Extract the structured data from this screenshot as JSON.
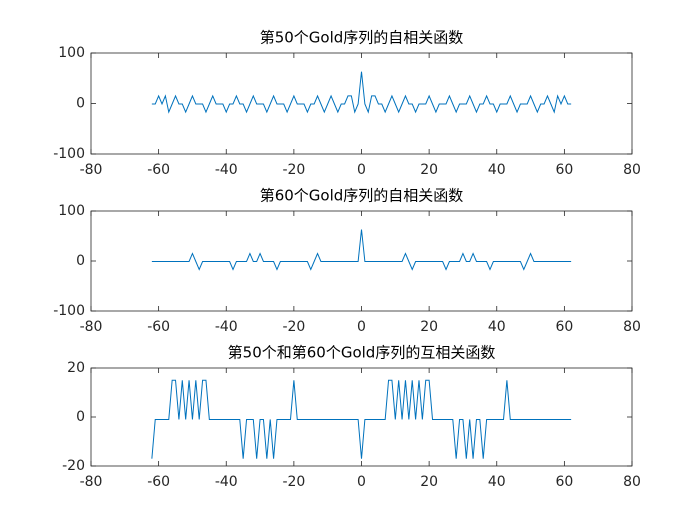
{
  "chart_data": [
    {
      "type": "line",
      "title": "第50个Gold序列的自相关函数",
      "x": [
        -62,
        -61,
        -60,
        -59,
        -58,
        -57,
        -56,
        -55,
        -54,
        -53,
        -52,
        -51,
        -50,
        -49,
        -48,
        -47,
        -46,
        -45,
        -44,
        -43,
        -42,
        -41,
        -40,
        -39,
        -38,
        -37,
        -36,
        -35,
        -34,
        -33,
        -32,
        -31,
        -30,
        -29,
        -28,
        -27,
        -26,
        -25,
        -24,
        -23,
        -22,
        -21,
        -20,
        -19,
        -18,
        -17,
        -16,
        -15,
        -14,
        -13,
        -12,
        -11,
        -10,
        -9,
        -8,
        -7,
        -6,
        -5,
        -4,
        -3,
        -2,
        -1,
        0,
        1,
        2,
        3,
        4,
        5,
        6,
        7,
        8,
        9,
        10,
        11,
        12,
        13,
        14,
        15,
        16,
        17,
        18,
        19,
        20,
        21,
        22,
        23,
        24,
        25,
        26,
        27,
        28,
        29,
        30,
        31,
        32,
        33,
        34,
        35,
        36,
        37,
        38,
        39,
        40,
        41,
        42,
        43,
        44,
        45,
        46,
        47,
        48,
        49,
        50,
        51,
        52,
        53,
        54,
        55,
        56,
        57,
        58,
        59,
        60,
        61,
        62
      ],
      "series": [
        {
          "color": "#0072bd",
          "values": [
            -1,
            -1,
            15,
            -1,
            15,
            -17,
            -1,
            15,
            -1,
            -1,
            -17,
            -1,
            15,
            -1,
            -1,
            -1,
            -17,
            -1,
            15,
            -1,
            -1,
            -1,
            -17,
            -1,
            -1,
            15,
            -1,
            -1,
            -17,
            -1,
            15,
            -1,
            -1,
            -1,
            -17,
            -1,
            15,
            -1,
            -1,
            -1,
            -17,
            -1,
            15,
            -1,
            -1,
            -1,
            -17,
            -1,
            -1,
            15,
            -1,
            -17,
            -1,
            15,
            -1,
            -17,
            -1,
            -1,
            15,
            15,
            -17,
            -1,
            63,
            -1,
            -17,
            15,
            15,
            -1,
            -1,
            -17,
            -1,
            15,
            -1,
            -17,
            -1,
            15,
            -1,
            -1,
            -17,
            -1,
            -1,
            -1,
            15,
            -1,
            -17,
            -1,
            -1,
            -1,
            15,
            -1,
            -17,
            -1,
            -1,
            -1,
            15,
            -1,
            -17,
            -1,
            -1,
            15,
            -1,
            -1,
            -17,
            -1,
            -1,
            -1,
            15,
            -1,
            -17,
            -1,
            -1,
            -1,
            15,
            -1,
            -17,
            -1,
            -1,
            15,
            -1,
            -17,
            15,
            -1,
            15,
            -1,
            -1
          ]
        }
      ],
      "xlim": [
        -80,
        80
      ],
      "xticks": [
        -80,
        -60,
        -40,
        -20,
        0,
        20,
        40,
        60,
        80
      ],
      "ylim": [
        -100,
        100
      ],
      "yticks": [
        -100,
        0,
        100
      ]
    },
    {
      "type": "line",
      "title": "第60个Gold序列的自相关函数",
      "x": [
        -62,
        -61,
        -60,
        -59,
        -58,
        -57,
        -56,
        -55,
        -54,
        -53,
        -52,
        -51,
        -50,
        -49,
        -48,
        -47,
        -46,
        -45,
        -44,
        -43,
        -42,
        -41,
        -40,
        -39,
        -38,
        -37,
        -36,
        -35,
        -34,
        -33,
        -32,
        -31,
        -30,
        -29,
        -28,
        -27,
        -26,
        -25,
        -24,
        -23,
        -22,
        -21,
        -20,
        -19,
        -18,
        -17,
        -16,
        -15,
        -14,
        -13,
        -12,
        -11,
        -10,
        -9,
        -8,
        -7,
        -6,
        -5,
        -4,
        -3,
        -2,
        -1,
        0,
        1,
        2,
        3,
        4,
        5,
        6,
        7,
        8,
        9,
        10,
        11,
        12,
        13,
        14,
        15,
        16,
        17,
        18,
        19,
        20,
        21,
        22,
        23,
        24,
        25,
        26,
        27,
        28,
        29,
        30,
        31,
        32,
        33,
        34,
        35,
        36,
        37,
        38,
        39,
        40,
        41,
        42,
        43,
        44,
        45,
        46,
        47,
        48,
        49,
        50,
        51,
        52,
        53,
        54,
        55,
        56,
        57,
        58,
        59,
        60,
        61,
        62
      ],
      "series": [
        {
          "color": "#0072bd",
          "values": [
            -1,
            -1,
            -1,
            -1,
            -1,
            -1,
            -1,
            -1,
            -1,
            -1,
            -1,
            -1,
            15,
            -1,
            -17,
            -1,
            -1,
            -1,
            -1,
            -1,
            -1,
            -1,
            -1,
            -1,
            -17,
            -1,
            -1,
            -1,
            -1,
            15,
            -1,
            -1,
            15,
            -1,
            -1,
            -1,
            -1,
            -17,
            -1,
            -1,
            -1,
            -1,
            -1,
            -1,
            -1,
            -1,
            -1,
            -17,
            -1,
            15,
            -1,
            -1,
            -1,
            -1,
            -1,
            -1,
            -1,
            -1,
            -1,
            -1,
            -1,
            -1,
            63,
            -1,
            -1,
            -1,
            -1,
            -1,
            -1,
            -1,
            -1,
            -1,
            -1,
            -1,
            -1,
            15,
            -1,
            -17,
            -1,
            -1,
            -1,
            -1,
            -1,
            -1,
            -1,
            -1,
            -1,
            -17,
            -1,
            -1,
            -1,
            -1,
            15,
            -1,
            -1,
            15,
            -1,
            -1,
            -1,
            -1,
            -17,
            -1,
            -1,
            -1,
            -1,
            -1,
            -1,
            -1,
            -1,
            -1,
            -17,
            -1,
            15,
            -1,
            -1,
            -1,
            -1,
            -1,
            -1,
            -1,
            -1,
            -1,
            -1,
            -1,
            -1
          ]
        }
      ],
      "xlim": [
        -80,
        80
      ],
      "xticks": [
        -80,
        -60,
        -40,
        -20,
        0,
        20,
        40,
        60,
        80
      ],
      "ylim": [
        -100,
        100
      ],
      "yticks": [
        -100,
        0,
        100
      ]
    },
    {
      "type": "line",
      "title": "第50个和第60个Gold序列的互相关函数",
      "x": [
        -62,
        -61,
        -60,
        -59,
        -58,
        -57,
        -56,
        -55,
        -54,
        -53,
        -52,
        -51,
        -50,
        -49,
        -48,
        -47,
        -46,
        -45,
        -44,
        -43,
        -42,
        -41,
        -40,
        -39,
        -38,
        -37,
        -36,
        -35,
        -34,
        -33,
        -32,
        -31,
        -30,
        -29,
        -28,
        -27,
        -26,
        -25,
        -24,
        -23,
        -22,
        -21,
        -20,
        -19,
        -18,
        -17,
        -16,
        -15,
        -14,
        -13,
        -12,
        -11,
        -10,
        -9,
        -8,
        -7,
        -6,
        -5,
        -4,
        -3,
        -2,
        -1,
        0,
        1,
        2,
        3,
        4,
        5,
        6,
        7,
        8,
        9,
        10,
        11,
        12,
        13,
        14,
        15,
        16,
        17,
        18,
        19,
        20,
        21,
        22,
        23,
        24,
        25,
        26,
        27,
        28,
        29,
        30,
        31,
        32,
        33,
        34,
        35,
        36,
        37,
        38,
        39,
        40,
        41,
        42,
        43,
        44,
        45,
        46,
        47,
        48,
        49,
        50,
        51,
        52,
        53,
        54,
        55,
        56,
        57,
        58,
        59,
        60,
        61,
        62
      ],
      "series": [
        {
          "color": "#0072bd",
          "values": [
            -17,
            -1,
            -1,
            -1,
            -1,
            -1,
            15,
            15,
            -1,
            15,
            -1,
            15,
            -1,
            15,
            -1,
            15,
            15,
            -1,
            -1,
            -1,
            -1,
            -1,
            -1,
            -1,
            -1,
            -1,
            -1,
            -17,
            -1,
            -1,
            -1,
            -17,
            -1,
            -1,
            -17,
            -1,
            -17,
            -1,
            -1,
            -1,
            -1,
            -1,
            15,
            -1,
            -1,
            -1,
            -1,
            -1,
            -1,
            -1,
            -1,
            -1,
            -1,
            -1,
            -1,
            -1,
            -1,
            -1,
            -1,
            -1,
            -1,
            -1,
            -17,
            -1,
            -1,
            -1,
            -1,
            -1,
            -1,
            -1,
            15,
            15,
            -1,
            15,
            -1,
            15,
            -1,
            15,
            -1,
            15,
            -1,
            15,
            15,
            -1,
            -1,
            -1,
            -1,
            -1,
            -1,
            -1,
            -17,
            -1,
            -1,
            -17,
            -1,
            -17,
            -1,
            -1,
            -17,
            -1,
            -1,
            -1,
            -1,
            -1,
            -1,
            15,
            -1,
            -1,
            -1,
            -1,
            -1,
            -1,
            -1,
            -1,
            -1,
            -1,
            -1,
            -1,
            -1,
            -1,
            -1,
            -1,
            -1,
            -1,
            -1
          ]
        }
      ],
      "xlim": [
        -80,
        80
      ],
      "xticks": [
        -80,
        -60,
        -40,
        -20,
        0,
        20,
        40,
        60,
        80
      ],
      "ylim": [
        -20,
        20
      ],
      "yticks": [
        -20,
        0,
        20
      ]
    }
  ]
}
